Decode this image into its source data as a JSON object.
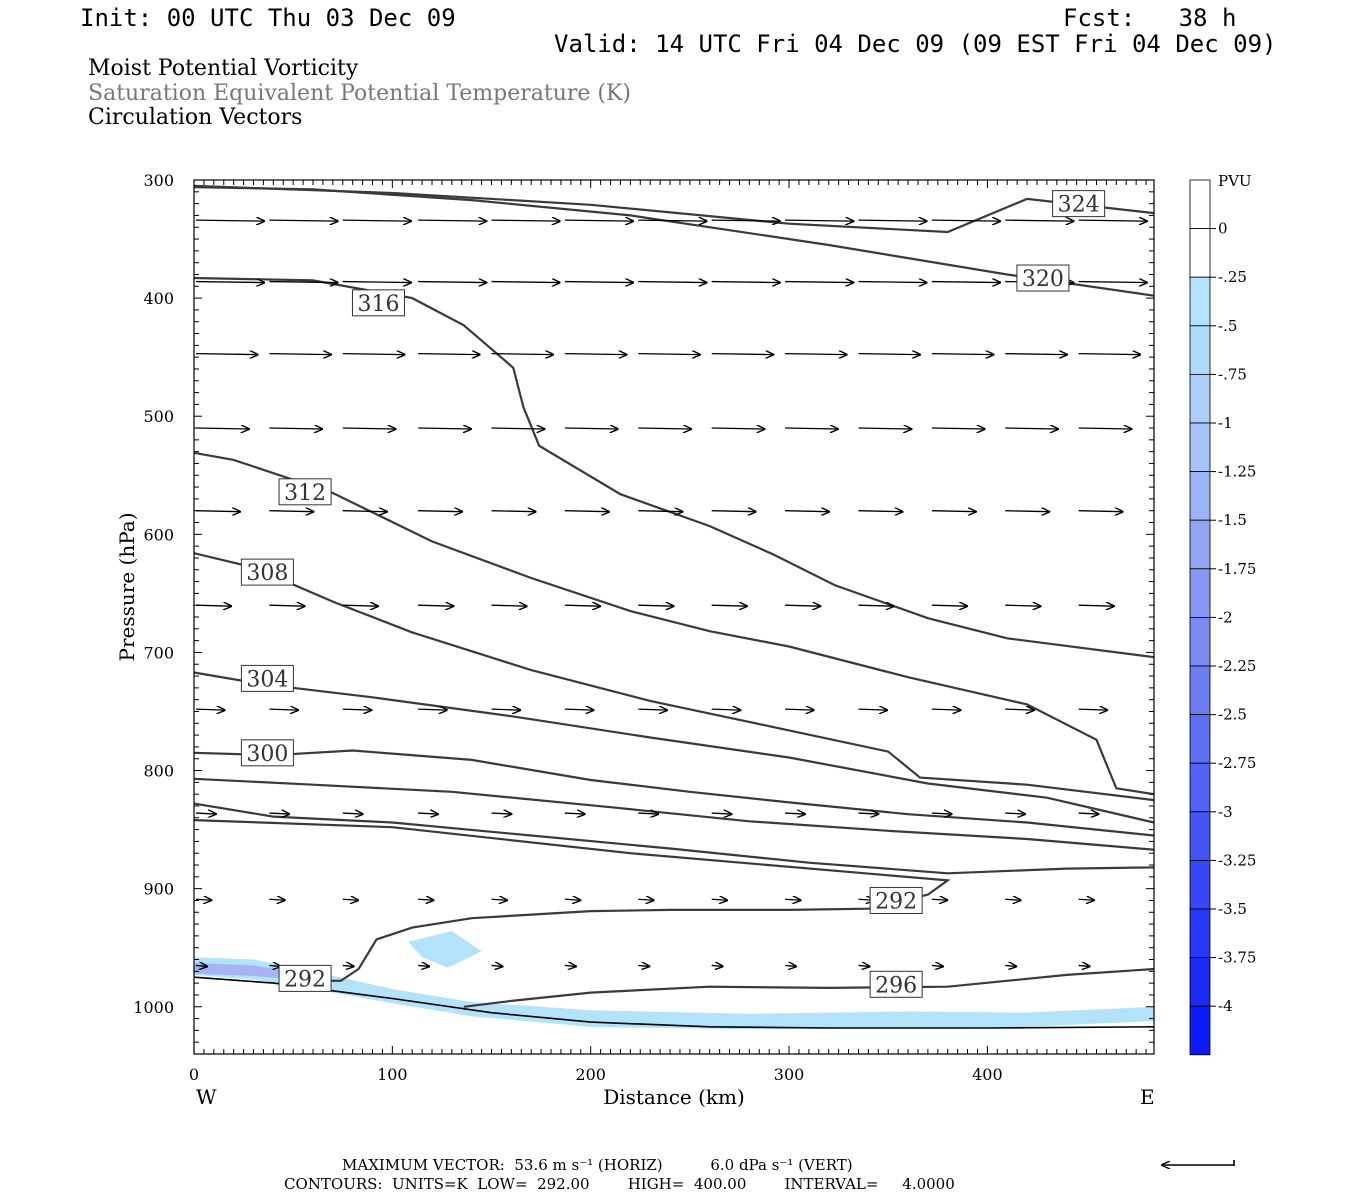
{
  "header": {
    "init": "Init: 00 UTC Thu 03 Dec 09",
    "fcst": "Fcst:   38 h",
    "valid": "Valid: 14 UTC Fri 04 Dec 09 (09 EST Fri 04 Dec 09)"
  },
  "field_titles": [
    "Moist Potential Vorticity",
    "Saturation Equivalent Potential Temperature (K)",
    "Circulation Vectors"
  ],
  "colors": {
    "contour": "#3a3a3a",
    "vector": "#000000",
    "field_gray": "#777777",
    "shade_light": "#b3e2fb",
    "shade_mid": "#a6b4f5"
  },
  "footer": {
    "vector_line": "MAXIMUM VECTOR:  53.6 m s⁻¹ (HORIZ)          6.0 dPa s⁻¹ (VERT)",
    "contour_line": "CONTOURS:  UNITS=K  LOW=  292.00        HIGH=  400.00        INTERVAL=     4.0000"
  },
  "chart_data": {
    "type": "cross-section",
    "xlabel": "Distance (km)",
    "ylabel": "Pressure (hPa)",
    "xlim": [
      0,
      484
    ],
    "ylim": [
      300,
      1040
    ],
    "y_inverted": true,
    "xticks": [
      0,
      100,
      200,
      300,
      400
    ],
    "yticks": [
      300,
      400,
      500,
      600,
      700,
      800,
      900,
      1000
    ],
    "x_end_labels": {
      "west": "W",
      "east": "E"
    },
    "colorbar": {
      "unit": "PVU",
      "levels": [
        "0",
        "-.25",
        "-.5",
        "-.75",
        "-1",
        "-1.25",
        "-1.5",
        "-1.75",
        "-2",
        "-2.25",
        "-2.5",
        "-2.75",
        "-3",
        "-3.25",
        "-3.5",
        "-3.75",
        "-4"
      ],
      "colors": [
        "#ffffff",
        "#ffffff",
        "#b3e2fb",
        "#b0d8f9",
        "#adcef8",
        "#a6c2f7",
        "#9bb4f6",
        "#90a6f5",
        "#8599f4",
        "#798bf3",
        "#6c7df2",
        "#5f6ff2",
        "#5261f3",
        "#4453f4",
        "#3645f5",
        "#2837f6",
        "#1a29f8",
        "#0d1afa"
      ]
    },
    "contours": [
      {
        "label": "324",
        "label_at": [
          446,
          320
        ],
        "points": [
          [
            0,
            305
          ],
          [
            100,
            311
          ],
          [
            200,
            321
          ],
          [
            300,
            337
          ],
          [
            380,
            344
          ],
          [
            420,
            316
          ],
          [
            484,
            328
          ]
        ]
      },
      {
        "label": "320",
        "label_at": [
          428,
          383
        ],
        "points": [
          [
            0,
            385
          ],
          [
            100,
            384
          ],
          [
            200,
            385
          ],
          [
            300,
            386
          ],
          [
            400,
            388
          ],
          [
            484,
            399
          ]
        ],
        "points_main": [
          [
            0,
            306
          ],
          [
            60,
            308
          ],
          [
            140,
            317
          ],
          [
            220,
            330
          ],
          [
            320,
            355
          ],
          [
            410,
            380
          ],
          [
            484,
            398
          ]
        ]
      },
      {
        "label": "316",
        "label_at": [
          93,
          404
        ],
        "points": [
          [
            0,
            383
          ],
          [
            60,
            385
          ],
          [
            110,
            400
          ],
          [
            136,
            423
          ],
          [
            161,
            459
          ],
          [
            166,
            492
          ],
          [
            174,
            525
          ],
          [
            215,
            566
          ],
          [
            260,
            593
          ],
          [
            292,
            617
          ],
          [
            323,
            643
          ],
          [
            370,
            671
          ],
          [
            410,
            688
          ],
          [
            484,
            704
          ]
        ]
      },
      {
        "label": "312",
        "label_at": [
          56,
          564
        ],
        "points": [
          [
            0,
            531
          ],
          [
            20,
            537
          ],
          [
            70,
            565
          ],
          [
            120,
            606
          ],
          [
            170,
            637
          ],
          [
            220,
            665
          ],
          [
            260,
            682
          ],
          [
            300,
            695
          ],
          [
            360,
            721
          ],
          [
            420,
            744
          ],
          [
            455,
            774
          ],
          [
            465,
            815
          ],
          [
            484,
            820
          ]
        ]
      },
      {
        "label": "308",
        "label_at": [
          37,
          632
        ],
        "points": [
          [
            0,
            616
          ],
          [
            30,
            628
          ],
          [
            70,
            657
          ],
          [
            110,
            683
          ],
          [
            170,
            715
          ],
          [
            230,
            741
          ],
          [
            300,
            766
          ],
          [
            350,
            784
          ],
          [
            366,
            806
          ],
          [
            420,
            812
          ],
          [
            484,
            825
          ]
        ]
      },
      {
        "label": "304",
        "label_at": [
          37,
          722
        ],
        "points": [
          [
            0,
            717
          ],
          [
            35,
            727
          ],
          [
            90,
            738
          ],
          [
            160,
            754
          ],
          [
            230,
            772
          ],
          [
            300,
            789
          ],
          [
            370,
            811
          ],
          [
            430,
            823
          ],
          [
            484,
            844
          ]
        ]
      },
      {
        "label": "300",
        "label_at": [
          37,
          785
        ],
        "points": [
          [
            0,
            785
          ],
          [
            40,
            787
          ],
          [
            80,
            783
          ],
          [
            140,
            791
          ],
          [
            200,
            808
          ],
          [
            250,
            818
          ],
          [
            300,
            827
          ],
          [
            360,
            837
          ],
          [
            420,
            844
          ],
          [
            484,
            855
          ]
        ]
      },
      {
        "label": "",
        "points": [
          [
            0,
            807
          ],
          [
            60,
            812
          ],
          [
            130,
            818
          ],
          [
            210,
            831
          ],
          [
            280,
            843
          ],
          [
            350,
            851
          ],
          [
            420,
            858
          ],
          [
            484,
            867
          ]
        ]
      },
      {
        "label": "",
        "points": [
          [
            0,
            828
          ],
          [
            40,
            839
          ],
          [
            100,
            844
          ],
          [
            170,
            855
          ],
          [
            240,
            866
          ],
          [
            310,
            878
          ],
          [
            380,
            887
          ],
          [
            440,
            883
          ],
          [
            484,
            882
          ]
        ]
      },
      {
        "label": "292",
        "label_at": [
          354,
          910
        ],
        "points": [
          [
            57,
            978
          ],
          [
            74,
            978
          ],
          [
            83,
            968
          ],
          [
            92,
            943
          ],
          [
            110,
            933
          ],
          [
            140,
            925
          ],
          [
            200,
            919
          ],
          [
            240,
            918
          ],
          [
            300,
            918
          ],
          [
            340,
            917
          ],
          [
            370,
            905
          ],
          [
            380,
            893
          ],
          [
            220,
            870
          ],
          [
            100,
            848
          ],
          [
            0,
            842
          ]
        ]
      },
      {
        "label": "296",
        "label_at": [
          354,
          981
        ],
        "points": [
          [
            136,
            1000
          ],
          [
            160,
            995
          ],
          [
            200,
            988
          ],
          [
            260,
            983
          ],
          [
            320,
            984
          ],
          [
            380,
            983
          ],
          [
            440,
            973
          ],
          [
            484,
            968
          ]
        ]
      },
      {
        "label": "292",
        "label_at": [
          56,
          976
        ],
        "points": []
      }
    ],
    "vector_rows": [
      {
        "p": 334,
        "xs": [
          0,
          37,
          74,
          112,
          149,
          186,
          223,
          260,
          297,
          334,
          371,
          408,
          445
        ],
        "len": 31
      },
      {
        "p": 386,
        "xs": [
          0,
          37,
          74,
          112,
          149,
          186,
          223,
          260,
          297,
          334,
          371,
          408,
          445
        ],
        "len": 31
      },
      {
        "p": 447,
        "xs": [
          0,
          37,
          74,
          112,
          149,
          186,
          223,
          260,
          297,
          334,
          371,
          408,
          445
        ],
        "len": 28
      },
      {
        "p": 510,
        "xs": [
          0,
          37,
          74,
          112,
          149,
          186,
          223,
          260,
          297,
          334,
          371,
          408,
          445
        ],
        "len": 24
      },
      {
        "p": 580,
        "xs": [
          0,
          37,
          74,
          112,
          149,
          186,
          223,
          260,
          297,
          334,
          371,
          408,
          445
        ],
        "len": 20
      },
      {
        "p": 660,
        "xs": [
          0,
          37,
          74,
          112,
          149,
          186,
          223,
          260,
          297,
          334,
          371,
          408,
          445
        ],
        "len": 16
      },
      {
        "p": 748,
        "xs": [
          0,
          37,
          74,
          112,
          149,
          186,
          223,
          260,
          297,
          334,
          371,
          408,
          445
        ],
        "len": 13
      },
      {
        "p": 836,
        "xs": [
          0,
          37,
          74,
          112,
          149,
          186,
          223,
          260,
          297,
          334,
          371,
          408,
          445
        ],
        "len": 9
      },
      {
        "p": 909,
        "xs": [
          0,
          37,
          74,
          112,
          149,
          186,
          223,
          260,
          297,
          334,
          371,
          408,
          445
        ],
        "len": 7
      },
      {
        "p": 965,
        "xs": [
          0,
          37,
          74,
          112,
          149,
          186,
          223,
          260,
          297,
          334,
          371,
          408,
          445
        ],
        "len": 5
      }
    ],
    "vector_scale_note": "reference arrow",
    "surface": [
      [
        0,
        975
      ],
      [
        40,
        980
      ],
      [
        100,
        993
      ],
      [
        150,
        1005
      ],
      [
        200,
        1013
      ],
      [
        260,
        1017
      ],
      [
        320,
        1018
      ],
      [
        400,
        1018
      ],
      [
        484,
        1017
      ]
    ]
  }
}
